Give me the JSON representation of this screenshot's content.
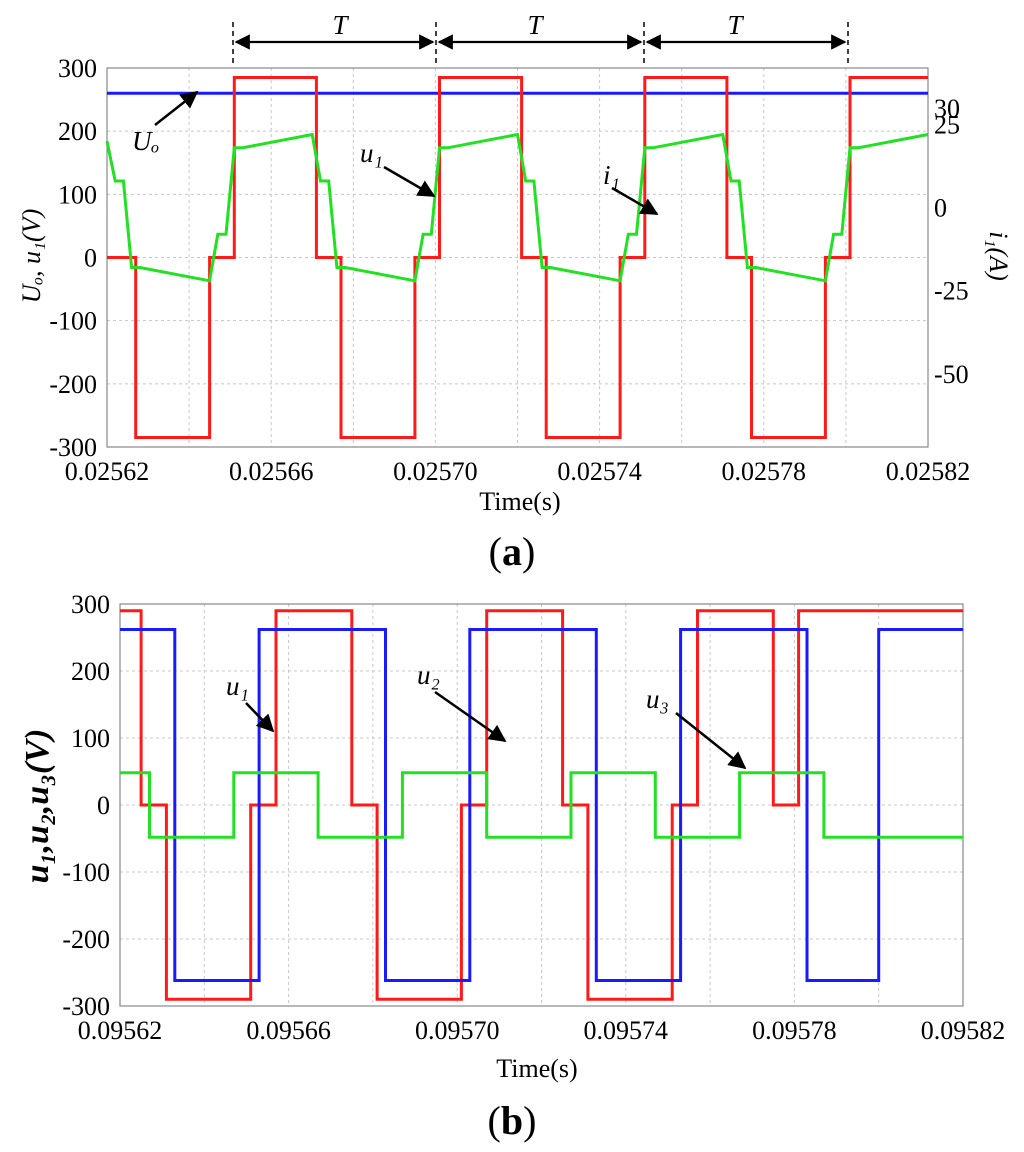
{
  "chart_data": [
    {
      "id": "a",
      "type": "line",
      "panel_label_open": "(",
      "panel_label_letter": "a",
      "panel_label_close": ")",
      "xlabel": "Time(s)",
      "ylabel_left": "Uₒ, u₁(V)",
      "ylabel_right": "i₁(A)",
      "xlim": [
        0.02562,
        0.02582
      ],
      "ylim": [
        -300,
        300
      ],
      "ylim_right": [
        -72,
        42
      ],
      "x_ticks": [
        0.02562,
        0.02566,
        0.0257,
        0.02574,
        0.02578,
        0.02582
      ],
      "x_tick_labels": [
        "0.02562",
        "0.02566",
        "0.02570",
        "0.02574",
        "0.02578",
        "0.02582"
      ],
      "y_ticks": [
        -300,
        -200,
        -100,
        0,
        100,
        200,
        300
      ],
      "y_tick_labels": [
        "-300",
        "-200",
        "-100",
        "0",
        "100",
        "200",
        "300"
      ],
      "y_ticks_right": [
        -50,
        -25,
        0,
        25,
        30
      ],
      "y_tick_labels_right": [
        "-50",
        "-25",
        "0",
        "25",
        "30"
      ],
      "colors": {
        "u1": "#ff1a1a",
        "Uo": "#1a1aff",
        "i1": "#22e022"
      },
      "series": [
        {
          "name": "Uo",
          "axis": "left",
          "x": [
            0.02562,
            0.02582
          ],
          "y": [
            260,
            260
          ]
        },
        {
          "name": "u1",
          "axis": "left",
          "x": [
            0.02562,
            0.025627,
            0.025627,
            0.025645,
            0.025645,
            0.025651,
            0.025651,
            0.025671,
            0.025671,
            0.025677,
            0.025677,
            0.025695,
            0.025695,
            0.025701,
            0.025701,
            0.025721,
            0.025721,
            0.025727,
            0.025727,
            0.025745,
            0.025745,
            0.025751,
            0.025751,
            0.025771,
            0.025771,
            0.025777,
            0.025777,
            0.025795,
            0.025795,
            0.025801,
            0.025801,
            0.02582
          ],
          "y": [
            0,
            0,
            -285,
            -285,
            0,
            0,
            285,
            285,
            0,
            0,
            -285,
            -285,
            0,
            0,
            285,
            285,
            0,
            0,
            -285,
            -285,
            0,
            0,
            285,
            285,
            0,
            0,
            -285,
            -285,
            0,
            0,
            285,
            285
          ]
        },
        {
          "name": "i1",
          "axis": "right",
          "x": [
            0.02562,
            0.025622,
            0.025624,
            0.025626,
            0.025628,
            0.025645,
            0.025647,
            0.025649,
            0.025651,
            0.025653,
            0.02567,
            0.025672,
            0.025674,
            0.025676,
            0.025678,
            0.025695,
            0.025697,
            0.025699,
            0.025701,
            0.025703,
            0.02572,
            0.025722,
            0.025724,
            0.025726,
            0.025728,
            0.025745,
            0.025747,
            0.025749,
            0.025751,
            0.025753,
            0.02577,
            0.025772,
            0.025774,
            0.025776,
            0.025778,
            0.025795,
            0.025797,
            0.025799,
            0.025801,
            0.025803,
            0.02582
          ],
          "y": [
            20,
            8,
            8,
            -18,
            -18,
            -22,
            -8,
            -8,
            18,
            18,
            22,
            8,
            8,
            -18,
            -18,
            -22,
            -8,
            -8,
            18,
            18,
            22,
            8,
            8,
            -18,
            -18,
            -22,
            -8,
            -8,
            18,
            18,
            22,
            8,
            8,
            -18,
            -18,
            -22,
            -8,
            -8,
            18,
            18,
            22
          ]
        }
      ],
      "annotations": {
        "period": "T",
        "Uo_label": "Uₒ",
        "u1_label": "u₁",
        "i1_label": "i₁"
      }
    },
    {
      "id": "b",
      "type": "line",
      "panel_label_open": "(",
      "panel_label_letter": "b",
      "panel_label_close": ")",
      "xlabel": "Time(s)",
      "ylabel": "u₁,u₂,u₃(V)",
      "xlim": [
        0.09562,
        0.09582
      ],
      "ylim": [
        -300,
        300
      ],
      "x_ticks": [
        0.09562,
        0.09566,
        0.0957,
        0.09574,
        0.09578,
        0.09582
      ],
      "x_tick_labels": [
        "0.09562",
        "0.09566",
        "0.09570",
        "0.09574",
        "0.09578",
        "0.09582"
      ],
      "y_ticks": [
        -300,
        -200,
        -100,
        0,
        100,
        200,
        300
      ],
      "y_tick_labels": [
        "-300",
        "-200",
        "-100",
        "0",
        "100",
        "200",
        "300"
      ],
      "colors": {
        "u1": "#ff1a1a",
        "u2": "#1a1aff",
        "u3": "#22e022"
      },
      "series": [
        {
          "name": "u1",
          "x": [
            0.09562,
            0.095625,
            0.095625,
            0.095631,
            0.095631,
            0.095651,
            0.095651,
            0.095657,
            0.095657,
            0.095675,
            0.095675,
            0.095681,
            0.095681,
            0.095701,
            0.095701,
            0.095707,
            0.095707,
            0.095725,
            0.095725,
            0.095731,
            0.095731,
            0.095751,
            0.095751,
            0.095757,
            0.095757,
            0.095775,
            0.095775,
            0.095781,
            0.095781,
            0.09582
          ],
          "y": [
            290,
            290,
            0,
            0,
            -290,
            -290,
            0,
            0,
            290,
            290,
            0,
            0,
            -290,
            -290,
            0,
            0,
            290,
            290,
            0,
            0,
            -290,
            -290,
            0,
            0,
            290,
            290,
            0,
            0,
            290,
            290
          ]
        },
        {
          "name": "u2",
          "x": [
            0.09562,
            0.095633,
            0.095633,
            0.095653,
            0.095653,
            0.095683,
            0.095683,
            0.095703,
            0.095703,
            0.095733,
            0.095733,
            0.095753,
            0.095753,
            0.095783,
            0.095783,
            0.0958,
            0.0958,
            0.09582
          ],
          "y": [
            262,
            262,
            -262,
            -262,
            262,
            262,
            -262,
            -262,
            262,
            262,
            -262,
            -262,
            262,
            262,
            -262,
            -262,
            262,
            262
          ]
        },
        {
          "name": "u3",
          "x": [
            0.09562,
            0.095627,
            0.095627,
            0.095647,
            0.095647,
            0.095667,
            0.095667,
            0.095687,
            0.095687,
            0.095707,
            0.095707,
            0.095727,
            0.095727,
            0.095747,
            0.095747,
            0.095767,
            0.095767,
            0.095787,
            0.095787,
            0.09582
          ],
          "y": [
            48,
            48,
            -48,
            -48,
            48,
            48,
            -48,
            -48,
            48,
            48,
            -48,
            -48,
            48,
            48,
            -48,
            -48,
            48,
            48,
            -48,
            -48
          ]
        }
      ],
      "annotations": {
        "u1_label": "u₁",
        "u2_label": "u₂",
        "u3_label": "u₃"
      }
    }
  ]
}
